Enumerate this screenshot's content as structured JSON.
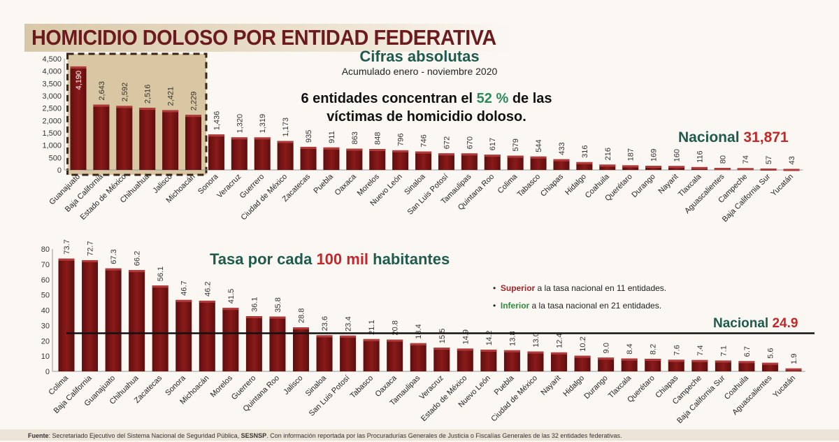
{
  "title": "HOMICIDIO DOLOSO POR ENTIDAD FEDERATIVA",
  "top": {
    "heading": "Cifras absolutas",
    "subheading": "Acumulado enero - noviembre 2020",
    "note_a": "6 entidades concentran el ",
    "note_pct": "52 %",
    "note_b": " de las",
    "note_c": "víctimas de homicidio doloso.",
    "nacional_label": "Nacional ",
    "nacional_value": "31,871"
  },
  "bottom": {
    "heading_a": "Tasa por cada ",
    "heading_b": "100 mil",
    "heading_c": " habitantes",
    "bullet1_a": "Superior",
    "bullet1_b": " a la tasa nacional en 11 entidades.",
    "bullet2_a": "Inferior",
    "bullet2_b": " a la tasa nacional en 21 entidades.",
    "nacional_label": "Nacional ",
    "nacional_value": "24.9"
  },
  "footer": {
    "a": "Fuente",
    "b": ": Secretariado Ejecutivo del Sistema Nacional de Seguridad Pública, ",
    "c": "SESNSP",
    "d": ". Con información reportada por las Procuradurías Generales de Justicia o Fiscalías Generales de las 32 entidades federativas."
  },
  "colors": {
    "bar": "#7a1515",
    "title": "#6b1a1e",
    "green": "#1f5a4c",
    "red": "#c0282a",
    "highlight_box": "#d9c6a2"
  },
  "chart_data": [
    {
      "type": "bar",
      "title": "Cifras absolutas",
      "ylim": [
        0,
        4500
      ],
      "yticks": [
        "0",
        "500",
        "1,000",
        "1,500",
        "2,000",
        "2,500",
        "3,000",
        "3,500",
        "4,000",
        "4,500"
      ],
      "categories": [
        "Guanajuato",
        "Baja California",
        "Estado de México",
        "Chihuahua",
        "Jalisco",
        "Michoacán",
        "Sonora",
        "Veracruz",
        "Guerrero",
        "Ciudad de México",
        "Zacatecas",
        "Puebla",
        "Oaxaca",
        "Morelos",
        "Nuevo León",
        "Sinaloa",
        "San Luis Potosí",
        "Tamaulipas",
        "Quintana Roo",
        "Colima",
        "Tabasco",
        "Chiapas",
        "Hidalgo",
        "Coahuila",
        "Querétaro",
        "Durango",
        "Nayarit",
        "Tlaxcala",
        "Aguascalientes",
        "Campeche",
        "Baja California Sur",
        "Yucatán"
      ],
      "values": [
        4190,
        2643,
        2592,
        2516,
        2421,
        2229,
        1436,
        1320,
        1319,
        1173,
        935,
        911,
        863,
        848,
        796,
        746,
        672,
        670,
        617,
        579,
        544,
        433,
        316,
        216,
        187,
        169,
        160,
        116,
        80,
        74,
        57,
        43
      ],
      "highlighted_count": 6
    },
    {
      "type": "bar",
      "title": "Tasa por cada 100 mil habitantes",
      "ylim": [
        0,
        80
      ],
      "yticks": [
        "0",
        "10",
        "20",
        "30",
        "40",
        "50",
        "60",
        "70",
        "80"
      ],
      "reference_line": 24.9,
      "categories": [
        "Colima",
        "Baja California",
        "Guanajuato",
        "Chihuahua",
        "Zacatecas",
        "Sonora",
        "Michoacán",
        "Morelos",
        "Guerrero",
        "Quintana Roo",
        "Jalisco",
        "Sinaloa",
        "San Luis Potosí",
        "Tabasco",
        "Oaxaca",
        "Tamaulipas",
        "Veracruz",
        "Estado de México",
        "Nuevo León",
        "Puebla",
        "Ciudad de México",
        "Nayarit",
        "Hidalgo",
        "Durango",
        "Tlaxcala",
        "Querétaro",
        "Chiapas",
        "Campeche",
        "Baja California Sur",
        "Coahuila",
        "Aguascalientes",
        "Yucatán"
      ],
      "values": [
        73.7,
        72.7,
        67.3,
        66.2,
        56.1,
        46.7,
        46.2,
        41.5,
        36.1,
        35.8,
        28.8,
        23.6,
        23.4,
        21.1,
        20.8,
        18.4,
        15.5,
        14.9,
        14.2,
        13.8,
        13.0,
        12.4,
        10.2,
        9.0,
        8.4,
        8.2,
        7.6,
        7.4,
        7.1,
        6.7,
        5.6,
        1.9
      ]
    }
  ]
}
